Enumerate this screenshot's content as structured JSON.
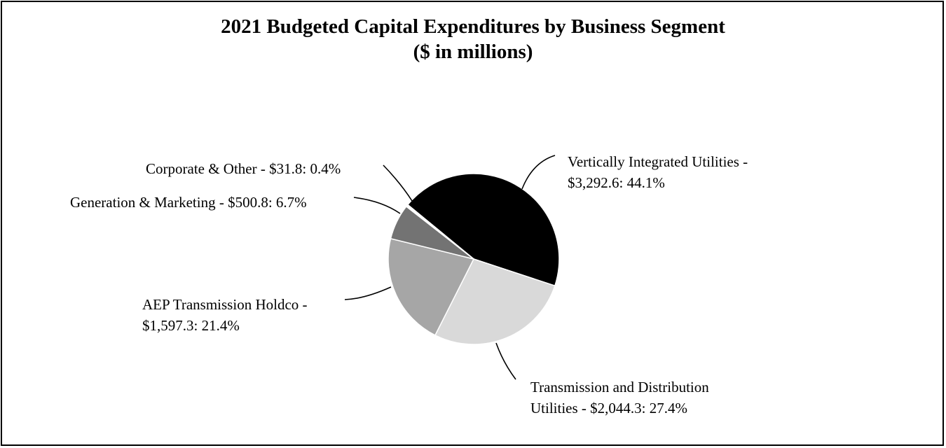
{
  "chart_data": {
    "type": "pie",
    "title": "2021 Budgeted Capital Expenditures by Business Segment",
    "subtitle": "($ in millions)",
    "slices": [
      {
        "name": "Vertically Integrated Utilities",
        "value": 3292.6,
        "percent": 44.1,
        "color": "#000000",
        "label_lines": [
          "Vertically Integrated Utilities -",
          "$3,292.6: 44.1%"
        ]
      },
      {
        "name": "Transmission and Distribution Utilities",
        "value": 2044.3,
        "percent": 27.4,
        "color": "#d9d9d9",
        "label_lines": [
          "Transmission and Distribution",
          "Utilities - $2,044.3: 27.4%"
        ]
      },
      {
        "name": "AEP Transmission Holdco",
        "value": 1597.3,
        "percent": 21.4,
        "color": "#a6a6a6",
        "label_lines": [
          "AEP Transmission Holdco -",
          "$1,597.3: 21.4%"
        ]
      },
      {
        "name": "Generation & Marketing",
        "value": 500.8,
        "percent": 6.7,
        "color": "#737373",
        "label_lines": [
          "Generation & Marketing - $500.8: 6.7%"
        ]
      },
      {
        "name": "Corporate & Other",
        "value": 31.8,
        "percent": 0.4,
        "color": "#ffffff",
        "label_lines": [
          "Corporate & Other - $31.8: 0.4%"
        ]
      }
    ]
  }
}
